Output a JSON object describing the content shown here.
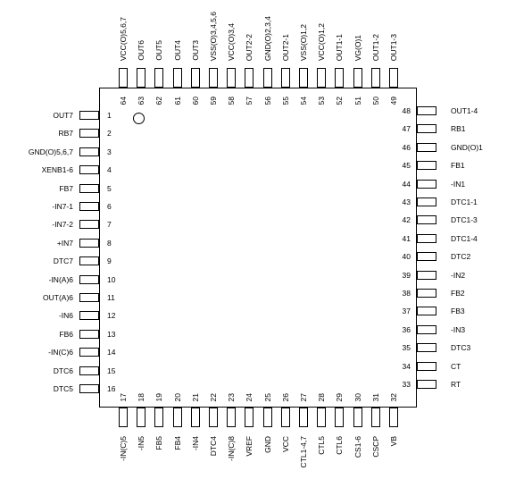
{
  "package": {
    "pin1_marker": "circle",
    "pins_left": [
      {
        "num": "1",
        "label": "OUT7"
      },
      {
        "num": "2",
        "label": "RB7"
      },
      {
        "num": "3",
        "label": "GND(O)5,6,7"
      },
      {
        "num": "4",
        "label": "XENB1-6"
      },
      {
        "num": "5",
        "label": "FB7"
      },
      {
        "num": "6",
        "label": "-IN7-1"
      },
      {
        "num": "7",
        "label": "-IN7-2"
      },
      {
        "num": "8",
        "label": "+IN7"
      },
      {
        "num": "9",
        "label": "DTC7"
      },
      {
        "num": "10",
        "label": "-IN(A)6"
      },
      {
        "num": "11",
        "label": "OUT(A)6"
      },
      {
        "num": "12",
        "label": "-IN6"
      },
      {
        "num": "13",
        "label": "FB6"
      },
      {
        "num": "14",
        "label": "-IN(C)6"
      },
      {
        "num": "15",
        "label": "DTC6"
      },
      {
        "num": "16",
        "label": "DTC5"
      }
    ],
    "pins_bottom": [
      {
        "num": "17",
        "label": "-IN(C)5"
      },
      {
        "num": "18",
        "label": "-IN5"
      },
      {
        "num": "19",
        "label": "FB5"
      },
      {
        "num": "20",
        "label": "FB4"
      },
      {
        "num": "21",
        "label": "-IN4"
      },
      {
        "num": "22",
        "label": "DTC4"
      },
      {
        "num": "23",
        "label": "-IN(C)8"
      },
      {
        "num": "24",
        "label": "VREF"
      },
      {
        "num": "25",
        "label": "GND"
      },
      {
        "num": "26",
        "label": "VCC"
      },
      {
        "num": "27",
        "label": "CTL1-4,7"
      },
      {
        "num": "28",
        "label": "CTL5"
      },
      {
        "num": "29",
        "label": "CTL6"
      },
      {
        "num": "30",
        "label": "CS1-6"
      },
      {
        "num": "31",
        "label": "CSCP"
      },
      {
        "num": "32",
        "label": "VB"
      }
    ],
    "pins_right": [
      {
        "num": "33",
        "label": "RT"
      },
      {
        "num": "34",
        "label": "CT"
      },
      {
        "num": "35",
        "label": "DTC3"
      },
      {
        "num": "36",
        "label": "-IN3"
      },
      {
        "num": "37",
        "label": "FB3"
      },
      {
        "num": "38",
        "label": "FB2"
      },
      {
        "num": "39",
        "label": "-IN2"
      },
      {
        "num": "40",
        "label": "DTC2"
      },
      {
        "num": "41",
        "label": "DTC1-4"
      },
      {
        "num": "42",
        "label": "DTC1-3"
      },
      {
        "num": "43",
        "label": "DTC1-1"
      },
      {
        "num": "44",
        "label": "-IN1"
      },
      {
        "num": "45",
        "label": "FB1"
      },
      {
        "num": "46",
        "label": "GND(O)1"
      },
      {
        "num": "47",
        "label": "RB1"
      },
      {
        "num": "48",
        "label": "OUT1-4"
      }
    ],
    "pins_top": [
      {
        "num": "49",
        "label": "OUT1-3"
      },
      {
        "num": "50",
        "label": "OUT1-2"
      },
      {
        "num": "51",
        "label": "VG(O)1"
      },
      {
        "num": "52",
        "label": "OUT1-1"
      },
      {
        "num": "53",
        "label": "VCC(O)1,2"
      },
      {
        "num": "54",
        "label": "VSS(O)1,2"
      },
      {
        "num": "55",
        "label": "OUT2-1"
      },
      {
        "num": "56",
        "label": "GND(O)2,3,4"
      },
      {
        "num": "57",
        "label": "OUT2-2"
      },
      {
        "num": "58",
        "label": "VCC(O)3,4"
      },
      {
        "num": "59",
        "label": "VSS(O)3,4,5,6"
      },
      {
        "num": "60",
        "label": "OUT3"
      },
      {
        "num": "61",
        "label": "OUT4"
      },
      {
        "num": "62",
        "label": "OUT5"
      },
      {
        "num": "63",
        "label": "OUT6"
      },
      {
        "num": "64",
        "label": "VCC(O)5,6,7"
      }
    ]
  }
}
